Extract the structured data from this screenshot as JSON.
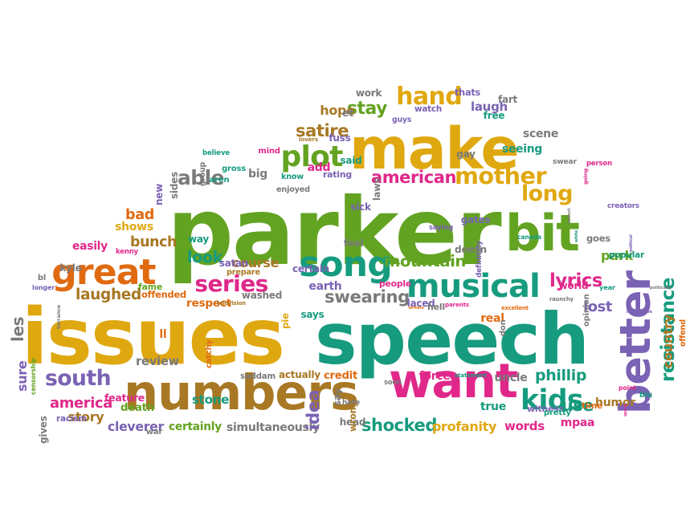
{
  "colors": {
    "green": "#63a322",
    "teal": "#169b7e",
    "gold": "#e0a810",
    "brown": "#a87824",
    "purple": "#7a62b4",
    "pink": "#e0288a",
    "orange": "#e06a10",
    "gray": "#7a7a7a"
  },
  "words": [
    {
      "text": "parker",
      "color": "green"
    },
    {
      "text": "speech",
      "color": "teal"
    },
    {
      "text": "issues",
      "color": "gold"
    },
    {
      "text": "make",
      "color": "gold"
    },
    {
      "text": "numbers",
      "color": "brown"
    },
    {
      "text": "want",
      "color": "pink"
    },
    {
      "text": "bit",
      "color": "green"
    },
    {
      "text": "better",
      "color": "purple"
    },
    {
      "text": "song",
      "color": "teal"
    },
    {
      "text": "great",
      "color": "orange"
    },
    {
      "text": "musical",
      "color": "teal"
    },
    {
      "text": "plot",
      "color": "green"
    },
    {
      "text": "kids",
      "color": "teal"
    },
    {
      "text": "hand",
      "color": "gold"
    },
    {
      "text": "mother",
      "color": "gold"
    },
    {
      "text": "american",
      "color": "pink"
    },
    {
      "text": "mountain",
      "color": "green"
    },
    {
      "text": "series",
      "color": "pink"
    },
    {
      "text": "south",
      "color": "purple"
    },
    {
      "text": "able",
      "color": "gray"
    },
    {
      "text": "satire",
      "color": "brown"
    },
    {
      "text": "long",
      "color": "gold"
    },
    {
      "text": "resistance",
      "color": "teal"
    },
    {
      "text": "country",
      "color": "brown"
    },
    {
      "text": "swearing",
      "color": "gray"
    },
    {
      "text": "shocked",
      "color": "teal"
    },
    {
      "text": "lyrics",
      "color": "pink"
    },
    {
      "text": "stay",
      "color": "green"
    },
    {
      "text": "laughed",
      "color": "brown"
    },
    {
      "text": "america",
      "color": "pink"
    },
    {
      "text": "look",
      "color": "teal"
    },
    {
      "text": "bunch",
      "color": "brown"
    },
    {
      "text": "park",
      "color": "green"
    },
    {
      "text": "lost",
      "color": "purple"
    },
    {
      "text": "use",
      "color": "teal"
    },
    {
      "text": "humor",
      "color": "brown"
    },
    {
      "text": "phillip",
      "color": "teal"
    },
    {
      "text": "cleverer",
      "color": "purple"
    },
    {
      "text": "certainly",
      "color": "green"
    },
    {
      "text": "simultaneously",
      "color": "gray"
    },
    {
      "text": "words",
      "color": "pink"
    },
    {
      "text": "profanity",
      "color": "gold"
    },
    {
      "text": "stone",
      "color": "teal"
    },
    {
      "text": "review",
      "color": "gray"
    },
    {
      "text": "story",
      "color": "brown"
    },
    {
      "text": "feature",
      "color": "pink"
    },
    {
      "text": "death",
      "color": "green"
    },
    {
      "text": "saddam",
      "color": "gray"
    },
    {
      "text": "actually",
      "color": "brown"
    },
    {
      "text": "credit",
      "color": "orange"
    },
    {
      "text": "idea",
      "color": "purple"
    },
    {
      "text": "pie",
      "color": "gold"
    },
    {
      "text": "course",
      "color": "brown"
    },
    {
      "text": "easily",
      "color": "pink"
    },
    {
      "text": "bad",
      "color": "orange"
    },
    {
      "text": "shows",
      "color": "gold"
    },
    {
      "text": "offended",
      "color": "orange"
    },
    {
      "text": "respect",
      "color": "orange"
    },
    {
      "text": "certain",
      "color": "purple"
    },
    {
      "text": "earth",
      "color": "purple"
    },
    {
      "text": "people",
      "color": "pink"
    },
    {
      "text": "seeing",
      "color": "teal"
    },
    {
      "text": "laugh",
      "color": "purple"
    },
    {
      "text": "true",
      "color": "teal"
    },
    {
      "text": "witness",
      "color": "purple"
    },
    {
      "text": "raunchy",
      "color": "gray"
    },
    {
      "text": "big",
      "color": "gray"
    },
    {
      "text": "enjoyed",
      "color": "gray"
    },
    {
      "text": "rating",
      "color": "purple"
    },
    {
      "text": "know",
      "color": "teal"
    },
    {
      "text": "add",
      "color": "pink"
    },
    {
      "text": "lovers",
      "color": "brown"
    },
    {
      "text": "fuss",
      "color": "purple"
    },
    {
      "text": "hope",
      "color": "brown"
    },
    {
      "text": "watch",
      "color": "purple"
    },
    {
      "text": "thats",
      "color": "purple"
    },
    {
      "text": "work",
      "color": "gray"
    },
    {
      "text": "scene",
      "color": "gray"
    },
    {
      "text": "world",
      "color": "pink"
    },
    {
      "text": "popular",
      "color": "teal"
    },
    {
      "text": "correct",
      "color": "gray"
    },
    {
      "text": "definitely",
      "color": "purple"
    },
    {
      "text": "real",
      "color": "orange"
    },
    {
      "text": "excellent",
      "color": "orange"
    },
    {
      "text": "year",
      "color": "teal"
    },
    {
      "text": "les",
      "color": "gray"
    },
    {
      "text": "sure",
      "color": "purple"
    },
    {
      "text": "censorship",
      "color": "green"
    },
    {
      "text": "racism",
      "color": "purple"
    },
    {
      "text": "gives",
      "color": "gray"
    },
    {
      "text": "longer",
      "color": "purple"
    },
    {
      "text": "way",
      "color": "teal"
    },
    {
      "text": "kenny",
      "color": "pink"
    },
    {
      "text": "kyle",
      "color": "gray"
    },
    {
      "text": "satan",
      "color": "purple"
    },
    {
      "text": "prepare",
      "color": "brown"
    },
    {
      "text": "washed",
      "color": "gray"
    },
    {
      "text": "television",
      "color": "brown"
    },
    {
      "text": "says",
      "color": "teal"
    },
    {
      "text": "laced",
      "color": "purple"
    },
    {
      "text": "forces",
      "color": "pink"
    },
    {
      "text": "statement",
      "color": "teal"
    },
    {
      "text": "uncle",
      "color": "gray"
    },
    {
      "text": "parents",
      "color": "pink"
    },
    {
      "text": "hell",
      "color": "gray"
    },
    {
      "text": "gay",
      "color": "gray"
    },
    {
      "text": "sick",
      "color": "purple"
    },
    {
      "text": "feel",
      "color": "gray"
    },
    {
      "text": "gates",
      "color": "purple"
    },
    {
      "text": "doesn",
      "color": "gray"
    },
    {
      "text": "mpaa",
      "color": "pink"
    },
    {
      "text": "pretty",
      "color": "teal"
    },
    {
      "text": "space",
      "color": "pink"
    },
    {
      "text": "head",
      "color": "gray"
    },
    {
      "text": "wrong",
      "color": "brown"
    },
    {
      "text": "offend",
      "color": "orange"
    },
    {
      "text": "political",
      "color": "purple"
    },
    {
      "text": "creators",
      "color": "purple"
    },
    {
      "text": "canada",
      "color": "teal"
    },
    {
      "text": "goes",
      "color": "gray"
    },
    {
      "text": "fame",
      "color": "green"
    },
    {
      "text": "new",
      "color": "purple"
    },
    {
      "text": "sides",
      "color": "gray"
    },
    {
      "text": "free",
      "color": "teal"
    },
    {
      "text": "guys",
      "color": "purple"
    },
    {
      "text": "fart",
      "color": "gray"
    },
    {
      "text": "person",
      "color": "pink"
    },
    {
      "text": "swear",
      "color": "gray"
    },
    {
      "text": "laws",
      "color": "gray"
    },
    {
      "text": "said",
      "color": "teal"
    },
    {
      "text": "mind",
      "color": "pink"
    },
    {
      "text": "gross",
      "color": "teal"
    },
    {
      "text": "believe",
      "color": "teal"
    },
    {
      "text": "group",
      "color": "gray"
    },
    {
      "text": "aren",
      "color": "teal"
    },
    {
      "text": "saying",
      "color": "purple"
    },
    {
      "text": "white",
      "color": "teal"
    },
    {
      "text": "going",
      "color": "pink"
    },
    {
      "text": "catchy",
      "color": "orange"
    },
    {
      "text": "bl",
      "color": "gray"
    },
    {
      "text": "terrance",
      "color": "gray"
    },
    {
      "text": "opinion",
      "color": "gray"
    },
    {
      "text": "politically",
      "color": "gray"
    },
    {
      "text": "imaginative",
      "color": "purple"
    },
    {
      "text": "blu",
      "color": "teal"
    },
    {
      "text": "time",
      "color": "orange"
    },
    {
      "text": "point",
      "color": "pink"
    },
    {
      "text": "war",
      "color": "gray"
    },
    {
      "text": "soon",
      "color": "gray"
    },
    {
      "text": "hate",
      "color": "gray"
    },
    {
      "text": "writers",
      "color": "orange"
    },
    {
      "text": "say",
      "color": "gray"
    },
    {
      "text": "don",
      "color": "gray"
    },
    {
      "text": "et",
      "color": "gray"
    },
    {
      "text": "ll",
      "color": "orange"
    },
    {
      "text": "terrence",
      "color": "pink"
    },
    {
      "text": "fan",
      "color": "orange"
    },
    {
      "text": "tv",
      "color": "gray"
    }
  ]
}
